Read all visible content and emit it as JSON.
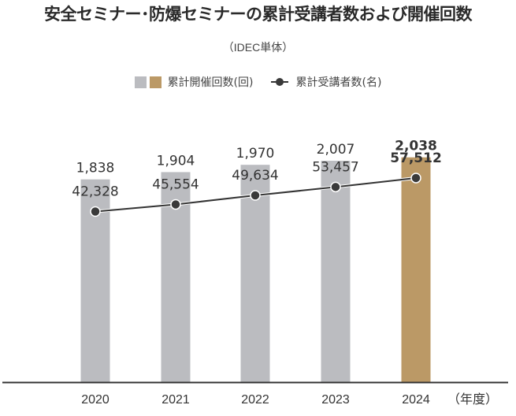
{
  "chart_data": {
    "type": "bar",
    "title": "安全セミナー･防爆セミナーの累計受講者数および開催回数",
    "subtitle": "（IDEC単体）",
    "categories": [
      "2020",
      "2021",
      "2022",
      "2023",
      "2024"
    ],
    "x_unit_label": "（年度）",
    "series": [
      {
        "name": "累計開催回数(回)",
        "type": "bar",
        "values": [
          1838,
          1904,
          1970,
          2007,
          2038
        ],
        "labels": [
          "1,838",
          "1,904",
          "1,970",
          "2,007",
          "2,038"
        ],
        "colors": [
          "#bbbcc0",
          "#bbbcc0",
          "#bbbcc0",
          "#bbbcc0",
          "#bb9966"
        ],
        "highlight_index": 4
      },
      {
        "name": "累計受講者数(名)",
        "type": "line",
        "values": [
          42328,
          45554,
          49634,
          53457,
          57512
        ],
        "labels": [
          "42,328",
          "45,554",
          "49,634",
          "53,457",
          "57,512"
        ],
        "color": "#333333",
        "highlight_index": 4
      }
    ],
    "legend": {
      "position": "top-center",
      "bar_colors": [
        "#bbbcc0",
        "#bb9966"
      ],
      "bar_label": "累計開催回数(回)",
      "line_label": "累計受講者数(名)"
    },
    "axes": {
      "bar_ylim": [
        0,
        2300
      ],
      "line_ylim": [
        -35000,
        80000
      ],
      "grid": false,
      "y_axis_visible": false
    }
  }
}
